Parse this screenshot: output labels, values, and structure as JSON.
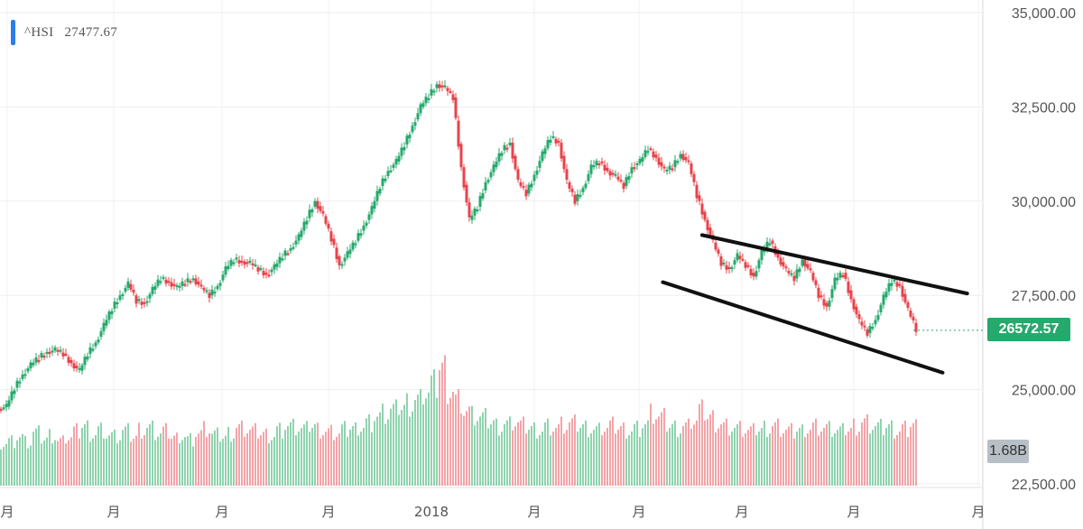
{
  "legend": {
    "symbol": "^HSI",
    "value": "27477.67"
  },
  "price_badge": "26572.57",
  "volume_badge": "1.68B",
  "colors": {
    "up": "#26a96c",
    "down": "#e8434b",
    "up_volume": "#8fd3ae",
    "down_volume": "#f3a4a8",
    "accent": "#2b7de9",
    "trendline": "#111111"
  },
  "chart_data": {
    "type": "candlestick",
    "ylim": [
      22500,
      35000
    ],
    "y_ticks": [
      "35,000.00",
      "32,500.00",
      "30,000.00",
      "27,500.00",
      "25,000.00",
      "22,500.00"
    ],
    "y_tick_values": [
      35000,
      32500,
      30000,
      27500,
      25000,
      22500
    ],
    "x_ticks": [
      "月",
      "月",
      "月",
      "月",
      "2018",
      "月",
      "月",
      "月",
      "月",
      "月"
    ],
    "series": [
      {
        "values": [
          24550,
          25050,
          25400,
          25650,
          25850,
          26000,
          26050,
          25950,
          25700,
          25500,
          25950,
          26250,
          26700,
          27150,
          27500,
          27800,
          27350,
          27300,
          27650,
          27950,
          27850,
          27700,
          27850,
          27950,
          27700,
          27500,
          27750,
          28200,
          28450,
          28400,
          28350,
          28200,
          28050,
          28250,
          28550,
          28750,
          29050,
          29550,
          30000,
          29600,
          29000,
          28300,
          28600,
          28950,
          29350,
          29800,
          30400,
          30800,
          31050,
          31500,
          32000,
          32500,
          32800,
          33100,
          33000,
          32750,
          30900,
          29500,
          29850,
          30500,
          30900,
          31350,
          31550,
          30500,
          30200,
          30700,
          31250,
          31700,
          31550,
          30500,
          30000,
          30350,
          30900,
          31050,
          30800,
          30650,
          30400,
          30900,
          31050,
          31400,
          31150,
          30800,
          30900,
          31250,
          31000,
          30150,
          29500,
          28900,
          28350,
          28200,
          28550,
          28300,
          28000,
          28650,
          28950,
          28500,
          28150,
          27950,
          28450,
          28100,
          27500,
          27200,
          27900,
          28100,
          27400,
          26800,
          26500,
          26850,
          27450,
          27900,
          27750,
          27100,
          26600
        ]
      }
    ],
    "volume": {
      "unit": "B",
      "values": [
        1.15,
        1.2,
        1.3,
        1.15,
        1.4,
        1.25,
        1.35,
        1.2,
        1.3,
        1.45,
        1.6,
        1.4,
        1.5,
        1.35,
        1.3,
        1.45,
        1.3,
        1.5,
        1.55,
        1.4,
        1.45,
        1.3,
        1.35,
        1.25,
        1.4,
        1.5,
        1.35,
        1.3,
        1.4,
        1.55,
        1.5,
        1.45,
        1.4,
        1.35,
        1.5,
        1.6,
        1.55,
        1.5,
        1.6,
        1.5,
        1.45,
        1.4,
        1.5,
        1.55,
        1.6,
        1.7,
        1.85,
        1.9,
        2.0,
        2.1,
        2.2,
        2.3,
        2.5,
        2.7,
        3.2,
        2.6,
        2.3,
        2.0,
        1.85,
        1.8,
        1.7,
        1.6,
        1.65,
        1.7,
        1.6,
        1.55,
        1.5,
        1.6,
        1.55,
        1.6,
        1.65,
        1.6,
        1.55,
        1.5,
        1.55,
        1.6,
        1.55,
        1.5,
        1.55,
        1.65,
        1.9,
        1.8,
        1.6,
        1.55,
        1.6,
        1.75,
        2.0,
        1.85,
        1.7,
        1.6,
        1.55,
        1.5,
        1.45,
        1.5,
        1.55,
        1.6,
        1.5,
        1.45,
        1.5,
        1.55,
        1.6,
        1.55,
        1.5,
        1.45,
        1.5,
        1.6,
        1.7,
        1.6,
        1.55,
        1.6,
        1.5,
        1.55,
        1.68
      ]
    },
    "trendlines": [
      {
        "from": [
          0.715,
          29100
        ],
        "to": [
          0.985,
          27550
        ]
      },
      {
        "from": [
          0.675,
          27850
        ],
        "to": [
          0.96,
          25450
        ]
      }
    ],
    "grid": true
  }
}
